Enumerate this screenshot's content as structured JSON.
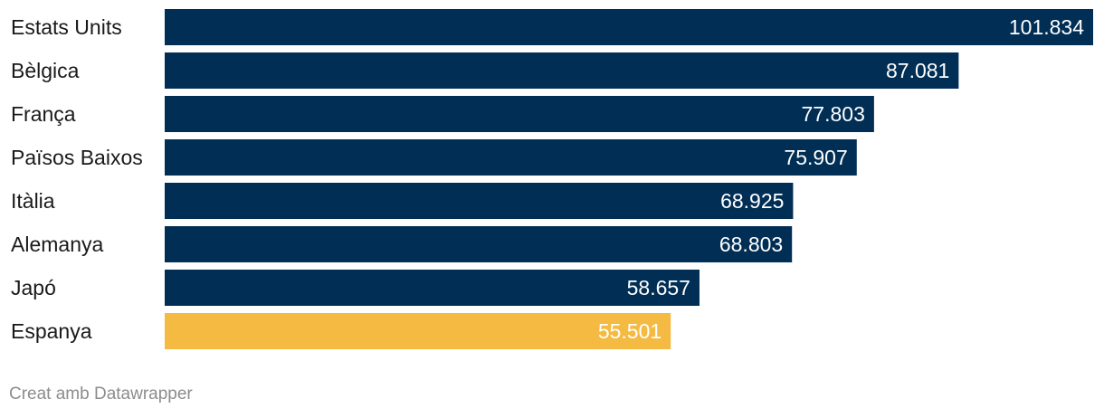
{
  "chart_data": {
    "type": "bar",
    "orientation": "horizontal",
    "categories": [
      "Estats Units",
      "Bèlgica",
      "França",
      "Països Baixos",
      "Itàlia",
      "Alemanya",
      "Japó",
      "Espanya"
    ],
    "values": [
      101834,
      87081,
      77803,
      75907,
      68925,
      68803,
      58657,
      55501
    ],
    "value_labels": [
      "101.834",
      "87.081",
      "77.803",
      "75.907",
      "68.925",
      "68.803",
      "58.657",
      "55.501"
    ],
    "xlim": [
      0,
      101834
    ],
    "grid": false,
    "title": "",
    "xlabel": "",
    "ylabel": ""
  },
  "colors": {
    "default_bar": "#002e55",
    "highlight_bar": "#f4ba41",
    "highlight_category": "Espanya"
  },
  "footer": {
    "credit": "Creat amb Datawrapper"
  }
}
